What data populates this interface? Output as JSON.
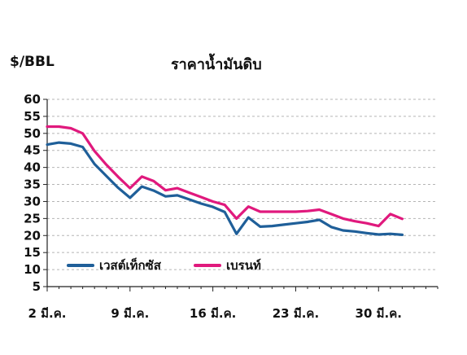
{
  "chart_data": {
    "type": "line",
    "title": "ราคาน้ำมันดิบ",
    "ylabel": "$/BBL",
    "ylim": [
      5,
      60
    ],
    "yticks": [
      5,
      10,
      15,
      20,
      25,
      30,
      35,
      40,
      45,
      50,
      55,
      60
    ],
    "xlim": [
      2,
      35
    ],
    "xticks": [
      {
        "value": 2,
        "label": "2 มี.ค."
      },
      {
        "value": 9,
        "label": "9 มี.ค."
      },
      {
        "value": 16,
        "label": "16 มี.ค."
      },
      {
        "value": 23,
        "label": "23 มี.ค."
      },
      {
        "value": 30,
        "label": "30 มี.ค."
      }
    ],
    "grid": true,
    "legend_position": "bottom-left",
    "series": [
      {
        "name": "เวสต์เท็กซัส",
        "color": "#1f5f99",
        "x": [
          2,
          3,
          4,
          5,
          6,
          7,
          8,
          9,
          10,
          11,
          12,
          13,
          14,
          15,
          16,
          17,
          18,
          19,
          20,
          21,
          22,
          23,
          24,
          25,
          26,
          27,
          28,
          29,
          30,
          31,
          32
        ],
        "y": [
          46.7,
          47.3,
          47,
          46,
          41,
          37.5,
          34,
          31.1,
          34.4,
          33.2,
          31.5,
          31.8,
          30.6,
          29.4,
          28.4,
          26.9,
          20.5,
          25.3,
          22.6,
          22.8,
          23.2,
          23.6,
          24,
          24.6,
          22.5,
          21.5,
          21.2,
          20.7,
          20.3,
          20.5,
          20.2
        ]
      },
      {
        "name": "เบรนท์",
        "color": "#e0197d",
        "x": [
          2,
          3,
          4,
          5,
          6,
          7,
          8,
          9,
          10,
          11,
          12,
          13,
          14,
          15,
          16,
          17,
          18,
          19,
          20,
          21,
          22,
          23,
          24,
          25,
          26,
          27,
          28,
          29,
          30,
          31,
          32
        ],
        "y": [
          52,
          52,
          51.5,
          50,
          44.8,
          40.8,
          37.2,
          33.9,
          37.3,
          36,
          33.3,
          33.9,
          32.6,
          31.3,
          30,
          29,
          25,
          28.5,
          27,
          27,
          27,
          27,
          27.2,
          27.6,
          26.3,
          25,
          24.2,
          23.6,
          22.8,
          26.3,
          24.9
        ]
      }
    ]
  }
}
